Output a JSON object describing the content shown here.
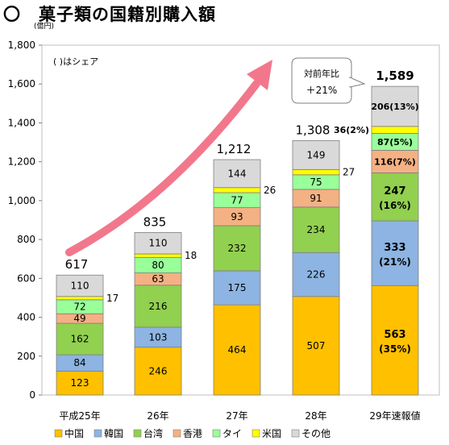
{
  "title": "〇　菓子類の国籍別購入額",
  "unit_label": "(億円)",
  "share_note": "(  )はシェア",
  "callout": {
    "line1": "対前年比",
    "line2": "＋21%"
  },
  "colors": {
    "中国": "#FFC000",
    "韓国": "#8DB4E2",
    "台湾": "#92D050",
    "香港": "#F4B183",
    "タイ": "#99FF99",
    "米国": "#FFFF00",
    "その他": "#D9D9D9",
    "arrow": "#F2778C"
  },
  "chart_data": {
    "type": "bar",
    "stacked": true,
    "categories": [
      "平成25年",
      "26年",
      "27年",
      "28年",
      "29年速報値"
    ],
    "ylim": [
      0,
      1800
    ],
    "yticks": [
      0,
      200,
      400,
      600,
      800,
      1000,
      1200,
      1400,
      1600,
      1800
    ],
    "ytick_labels": [
      "0",
      "200",
      "400",
      "600",
      "800",
      "1,000",
      "1,200",
      "1,400",
      "1,600",
      "1,800"
    ],
    "totals": [
      617,
      835,
      1212,
      1308,
      1589
    ],
    "total_labels": [
      "617",
      "835",
      "1,212",
      "1,308",
      "1,589"
    ],
    "series": [
      {
        "name": "中国",
        "values": [
          123,
          246,
          464,
          507,
          563
        ],
        "labels": [
          "123",
          "246",
          "464",
          "507",
          "563"
        ],
        "shares": [
          null,
          null,
          null,
          null,
          "(35%)"
        ]
      },
      {
        "name": "韓国",
        "values": [
          84,
          103,
          175,
          226,
          333
        ],
        "labels": [
          "84",
          "103",
          "175",
          "226",
          "333"
        ],
        "shares": [
          null,
          null,
          null,
          null,
          "(21%)"
        ]
      },
      {
        "name": "台湾",
        "values": [
          162,
          216,
          232,
          234,
          247
        ],
        "labels": [
          "162",
          "216",
          "232",
          "234",
          "247"
        ],
        "shares": [
          null,
          null,
          null,
          null,
          "(16%)"
        ]
      },
      {
        "name": "香港",
        "values": [
          49,
          63,
          93,
          91,
          116
        ],
        "labels": [
          "49",
          "63",
          "93",
          "91",
          "116(7%)"
        ]
      },
      {
        "name": "タイ",
        "values": [
          72,
          80,
          77,
          75,
          87
        ],
        "labels": [
          "72",
          "80",
          "77",
          "75",
          "87(5%)"
        ]
      },
      {
        "name": "米国",
        "values": [
          17,
          18,
          26,
          27,
          36
        ],
        "labels": [
          "17",
          "18",
          "26",
          "27",
          "36(2%)"
        ]
      },
      {
        "name": "その他",
        "values": [
          110,
          110,
          144,
          149,
          206
        ],
        "labels": [
          "110",
          "110",
          "144",
          "149",
          "206(13%)"
        ]
      }
    ],
    "legend_position": "bottom",
    "grid": false
  }
}
